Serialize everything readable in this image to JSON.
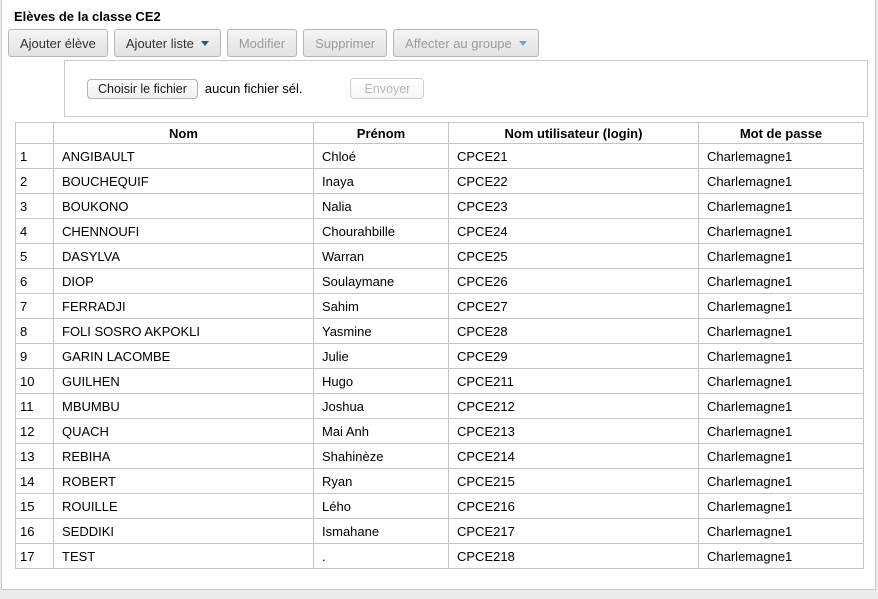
{
  "colors": {
    "card_border": "#c9c9c9",
    "page_background": "#ececec",
    "button_background_top": "#f5f5f5",
    "button_background_bottom": "#e2e2e2",
    "button_border": "#b6b6b6",
    "button_text": "#333333",
    "button_text_disabled": "#9b9b9b",
    "caret_enabled": "#33557e",
    "caret_disabled": "#7f9fc4",
    "table_border": "#c4c4c4"
  },
  "header": {
    "title": "Elèves de la classe CE2"
  },
  "toolbar": {
    "buttons": [
      {
        "label": "Ajouter élève",
        "enabled": true,
        "caret": false
      },
      {
        "label": "Ajouter liste",
        "enabled": true,
        "caret": true
      },
      {
        "label": "Modifier",
        "enabled": false,
        "caret": false
      },
      {
        "label": "Supprimer",
        "enabled": false,
        "caret": false
      },
      {
        "label": "Affecter au groupe",
        "enabled": false,
        "caret": true
      }
    ]
  },
  "upload": {
    "choose_file_button": "Choisir le fichier",
    "file_status": "aucun fichier sél.",
    "submit_button": "Envoyer"
  },
  "table": {
    "headers": {
      "num": "",
      "nom": "Nom",
      "prenom": "Prénom",
      "login": "Nom utilisateur (login)",
      "password": "Mot de passe"
    },
    "rows": [
      {
        "num": "1",
        "nom": "ANGIBAULT",
        "prenom": "Chloé",
        "login": "CPCE21",
        "password": "Charlemagne1"
      },
      {
        "num": "2",
        "nom": "BOUCHEQUIF",
        "prenom": "Inaya",
        "login": "CPCE22",
        "password": "Charlemagne1"
      },
      {
        "num": "3",
        "nom": "BOUKONO",
        "prenom": "Nalia",
        "login": "CPCE23",
        "password": "Charlemagne1"
      },
      {
        "num": "4",
        "nom": "CHENNOUFI",
        "prenom": "Chourahbille",
        "login": "CPCE24",
        "password": "Charlemagne1"
      },
      {
        "num": "5",
        "nom": "DASYLVA",
        "prenom": "Warran",
        "login": "CPCE25",
        "password": "Charlemagne1"
      },
      {
        "num": "6",
        "nom": "DIOP",
        "prenom": "Soulaymane",
        "login": "CPCE26",
        "password": "Charlemagne1"
      },
      {
        "num": "7",
        "nom": "FERRADJI",
        "prenom": "Sahim",
        "login": "CPCE27",
        "password": "Charlemagne1"
      },
      {
        "num": "8",
        "nom": "FOLI SOSRO AKPOKLI",
        "prenom": "Yasmine",
        "login": "CPCE28",
        "password": "Charlemagne1"
      },
      {
        "num": "9",
        "nom": "GARIN LACOMBE",
        "prenom": "Julie",
        "login": "CPCE29",
        "password": "Charlemagne1"
      },
      {
        "num": "10",
        "nom": "GUILHEN",
        "prenom": "Hugo",
        "login": "CPCE211",
        "password": "Charlemagne1"
      },
      {
        "num": "11",
        "nom": "MBUMBU",
        "prenom": "Joshua",
        "login": "CPCE212",
        "password": "Charlemagne1"
      },
      {
        "num": "12",
        "nom": "QUACH",
        "prenom": "Mai Anh",
        "login": "CPCE213",
        "password": "Charlemagne1"
      },
      {
        "num": "13",
        "nom": "REBIHA",
        "prenom": "Shahinèze",
        "login": "CPCE214",
        "password": "Charlemagne1"
      },
      {
        "num": "14",
        "nom": "ROBERT",
        "prenom": "Ryan",
        "login": "CPCE215",
        "password": "Charlemagne1"
      },
      {
        "num": "15",
        "nom": "ROUILLE",
        "prenom": "Lého",
        "login": "CPCE216",
        "password": "Charlemagne1"
      },
      {
        "num": "16",
        "nom": "SEDDIKI",
        "prenom": "Ismahane",
        "login": "CPCE217",
        "password": "Charlemagne1"
      },
      {
        "num": "17",
        "nom": "TEST",
        "prenom": ".",
        "login": "CPCE218",
        "password": "Charlemagne1"
      }
    ]
  }
}
